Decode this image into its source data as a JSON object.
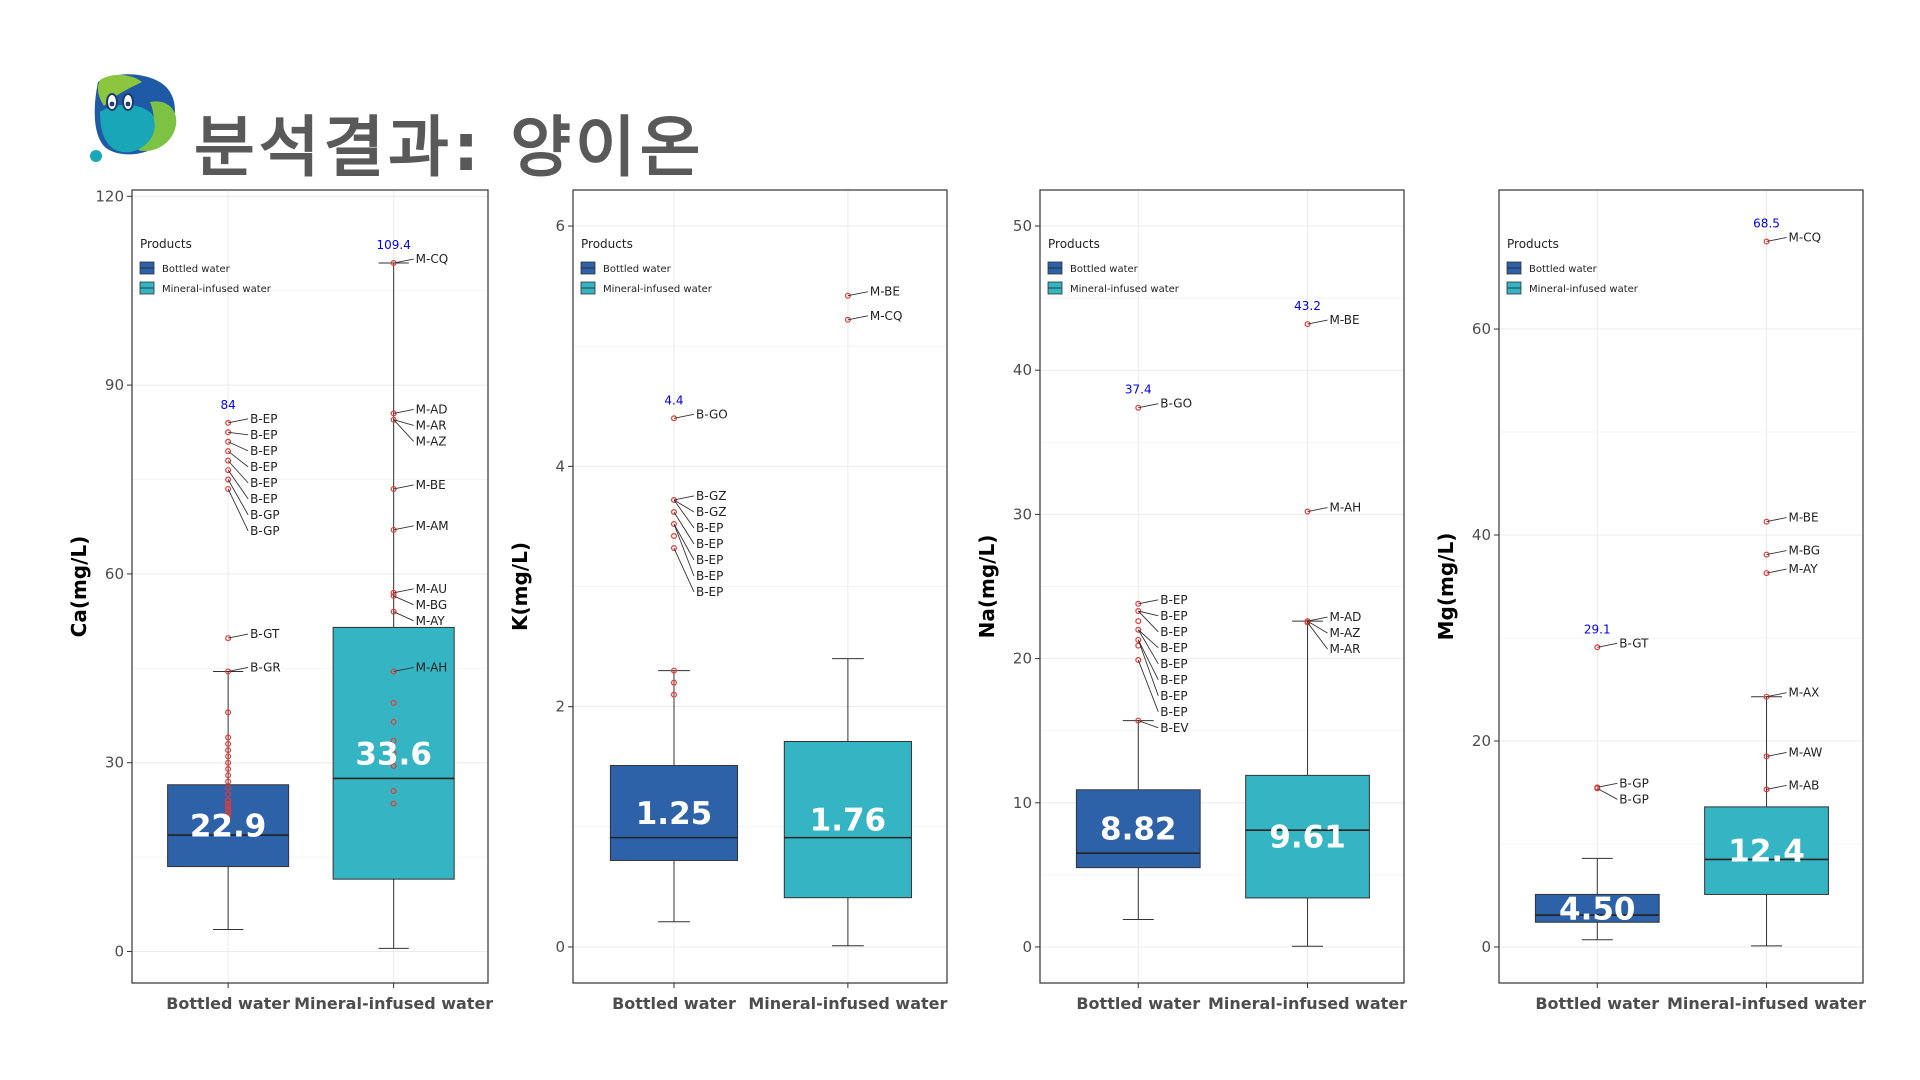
{
  "page": {
    "title": "분석결과: 양이온"
  },
  "colors": {
    "bottled": "#2E62A8",
    "mineral": "#35B5C3",
    "outlier": "#E53935",
    "max_label": "#0000EE",
    "title": "#595959"
  },
  "chart_data": [
    {
      "type": "boxplot",
      "ylabel": "Ca(mg/L)",
      "ylim": [
        -5,
        121
      ],
      "yticks": [
        0,
        30,
        60,
        90,
        120
      ],
      "categories": [
        "Bottled water",
        "Mineral-infused water"
      ],
      "legend": {
        "title": "Products",
        "entries": [
          "Bottled water",
          "Mineral-infused water"
        ],
        "position": "top-left"
      },
      "series": [
        {
          "name": "Bottled water",
          "whisker_low": 3.5,
          "q1": 13.5,
          "median": 18.5,
          "q3": 26.5,
          "whisker_high": 44.5,
          "mean_label": "22.9",
          "max_label": "84",
          "outliers": [
            21.5,
            22,
            22.5,
            23,
            23.5,
            24,
            25,
            26,
            27,
            28,
            29,
            30,
            31,
            32,
            33,
            34,
            38,
            44.5,
            49.8,
            73.5,
            75,
            76.5,
            78,
            79.5,
            81,
            82.5,
            84
          ],
          "labels": [
            {
              "text": "B-EP",
              "y": 84
            },
            {
              "text": "B-EP",
              "y": 82.5
            },
            {
              "text": "B-EP",
              "y": 81
            },
            {
              "text": "B-EP",
              "y": 79.5
            },
            {
              "text": "B-EP",
              "y": 78
            },
            {
              "text": "B-EP",
              "y": 76.5
            },
            {
              "text": "B-GP",
              "y": 75
            },
            {
              "text": "B-GP",
              "y": 73.5
            },
            {
              "text": "B-GT",
              "y": 49.8
            },
            {
              "text": "B-GR",
              "y": 44.5
            }
          ]
        },
        {
          "name": "Mineral-infused water",
          "whisker_low": 0.5,
          "q1": 11.5,
          "median": 27.5,
          "q3": 51.5,
          "whisker_high": 109.4,
          "mean_label": "33.6",
          "max_label": "109.4",
          "outliers": [
            23.5,
            25.5,
            29.5,
            31.5,
            33.5,
            36.5,
            39.5,
            44.5,
            54,
            56.5,
            57,
            67,
            73.5,
            84.5,
            85.5,
            109.4
          ],
          "labels": [
            {
              "text": "M-CQ",
              "y": 109.4
            },
            {
              "text": "M-AD",
              "y": 85.5
            },
            {
              "text": "M-AR",
              "y": 84.5
            },
            {
              "text": "M-AZ",
              "y": 84.5
            },
            {
              "text": "M-BE",
              "y": 73.5
            },
            {
              "text": "M-AM",
              "y": 67
            },
            {
              "text": "M-AU",
              "y": 57
            },
            {
              "text": "M-BG",
              "y": 56.5
            },
            {
              "text": "M-AY",
              "y": 54
            },
            {
              "text": "M-AH",
              "y": 44.5
            }
          ]
        }
      ]
    },
    {
      "type": "boxplot",
      "ylabel": "K(mg/L)",
      "ylim": [
        -0.3,
        6.3
      ],
      "yticks": [
        0,
        2,
        4,
        6
      ],
      "categories": [
        "Bottled water",
        "Mineral-infused water"
      ],
      "legend": {
        "title": "Products",
        "entries": [
          "Bottled water",
          "Mineral-infused water"
        ],
        "position": "top-left"
      },
      "series": [
        {
          "name": "Bottled water",
          "whisker_low": 0.21,
          "q1": 0.72,
          "median": 0.91,
          "q3": 1.51,
          "whisker_high": 2.3,
          "mean_label": "1.25",
          "max_label": "4.4",
          "outliers": [
            2.1,
            2.2,
            2.3,
            3.32,
            3.42,
            3.52,
            3.62,
            3.72,
            4.4
          ],
          "labels": [
            {
              "text": "B-GO",
              "y": 4.4
            },
            {
              "text": "B-GZ",
              "y": 3.72
            },
            {
              "text": "B-GZ",
              "y": 3.72
            },
            {
              "text": "B-EP",
              "y": 3.72
            },
            {
              "text": "B-EP",
              "y": 3.62
            },
            {
              "text": "B-EP",
              "y": 3.52
            },
            {
              "text": "B-EP",
              "y": 3.52
            },
            {
              "text": "B-EP",
              "y": 3.32
            }
          ]
        },
        {
          "name": "Mineral-infused water",
          "whisker_low": 0.01,
          "q1": 0.41,
          "median": 0.91,
          "q3": 1.71,
          "whisker_high": 2.4,
          "mean_label": "1.76",
          "max_label": "",
          "outliers": [
            5.22,
            5.42
          ],
          "labels": [
            {
              "text": "M-BE",
              "y": 5.42
            },
            {
              "text": "M-CQ",
              "y": 5.22
            }
          ]
        }
      ]
    },
    {
      "type": "boxplot",
      "ylabel": "Na(mg/L)",
      "ylim": [
        -2.5,
        52.5
      ],
      "yticks": [
        0,
        10,
        20,
        30,
        40,
        50
      ],
      "categories": [
        "Bottled water",
        "Mineral-infused water"
      ],
      "legend": {
        "title": "Products",
        "entries": [
          "Bottled water",
          "Mineral-infused water"
        ],
        "position": "top-left"
      },
      "series": [
        {
          "name": "Bottled water",
          "whisker_low": 1.9,
          "q1": 5.5,
          "median": 6.5,
          "q3": 10.9,
          "whisker_high": 15.7,
          "mean_label": "8.82",
          "max_label": "37.4",
          "outliers": [
            15.7,
            19.9,
            20.9,
            21.3,
            22,
            22.6,
            23.3,
            23.8,
            37.4
          ],
          "labels": [
            {
              "text": "B-GO",
              "y": 37.4
            },
            {
              "text": "B-EP",
              "y": 23.8
            },
            {
              "text": "B-EP",
              "y": 23.3
            },
            {
              "text": "B-EP",
              "y": 23.3
            },
            {
              "text": "B-EP",
              "y": 22
            },
            {
              "text": "B-EP",
              "y": 22
            },
            {
              "text": "B-EP",
              "y": 21.3
            },
            {
              "text": "B-EP",
              "y": 21.3
            },
            {
              "text": "B-EP",
              "y": 19.9
            },
            {
              "text": "B-EV",
              "y": 15.7
            }
          ]
        },
        {
          "name": "Mineral-infused water",
          "whisker_low": 0.05,
          "q1": 3.4,
          "median": 8.1,
          "q3": 11.9,
          "whisker_high": 22.6,
          "mean_label": "9.61",
          "max_label": "43.2",
          "outliers": [
            22.5,
            22.6,
            30.2,
            43.2
          ],
          "labels": [
            {
              "text": "M-BE",
              "y": 43.2
            },
            {
              "text": "M-AH",
              "y": 30.2
            },
            {
              "text": "M-AD",
              "y": 22.6
            },
            {
              "text": "M-AZ",
              "y": 22.6
            },
            {
              "text": "M-AR",
              "y": 22.5
            }
          ]
        }
      ]
    },
    {
      "type": "boxplot",
      "ylabel": "Mg(mg/L)",
      "ylim": [
        -3.5,
        73.5
      ],
      "yticks": [
        0,
        20,
        40,
        60
      ],
      "categories": [
        "Bottled water",
        "Mineral-infused water"
      ],
      "legend": {
        "title": "Products",
        "entries": [
          "Bottled water",
          "Mineral-infused water"
        ],
        "position": "top-left"
      },
      "series": [
        {
          "name": "Bottled water",
          "whisker_low": 0.7,
          "q1": 2.4,
          "median": 3.1,
          "q3": 5.1,
          "whisker_high": 8.6,
          "mean_label": "4.50",
          "max_label": "29.1",
          "outliers": [
            15.4,
            15.5,
            29.1
          ],
          "labels": [
            {
              "text": "B-GT",
              "y": 29.1
            },
            {
              "text": "B-GP",
              "y": 15.5
            },
            {
              "text": "B-GP",
              "y": 15.4
            }
          ]
        },
        {
          "name": "Mineral-infused water",
          "whisker_low": 0.1,
          "q1": 5.1,
          "median": 8.5,
          "q3": 13.6,
          "whisker_high": 24.3,
          "mean_label": "12.4",
          "max_label": "68.5",
          "outliers": [
            15.3,
            18.5,
            24.3,
            36.3,
            38.1,
            41.3,
            68.5
          ],
          "labels": [
            {
              "text": "M-CQ",
              "y": 68.5
            },
            {
              "text": "M-BE",
              "y": 41.3
            },
            {
              "text": "M-BG",
              "y": 38.1
            },
            {
              "text": "M-AY",
              "y": 36.3
            },
            {
              "text": "M-AX",
              "y": 24.3
            },
            {
              "text": "M-AW",
              "y": 18.5
            },
            {
              "text": "M-AB",
              "y": 15.3
            }
          ]
        }
      ]
    }
  ]
}
